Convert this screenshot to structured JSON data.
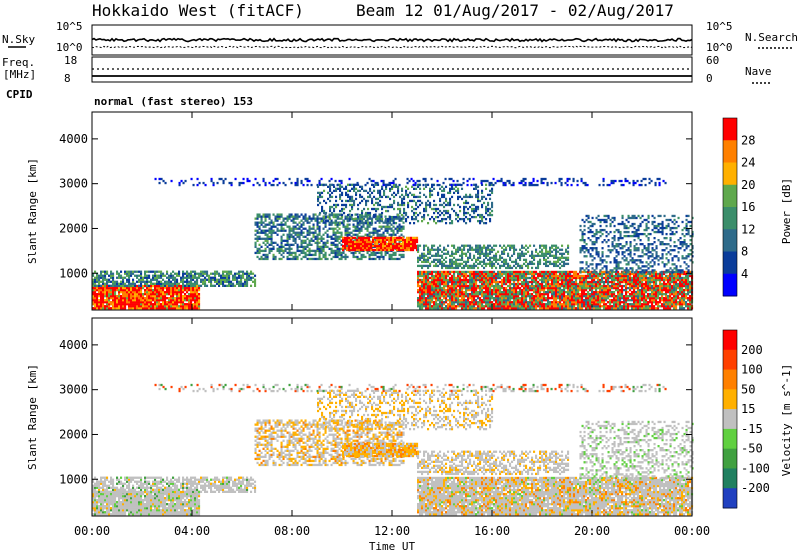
{
  "header": {
    "title": "Hokkaido West (fitACF)",
    "beam_info": "Beam 12 01/Aug/2017 - 02/Aug/2017"
  },
  "strip": {
    "nsky_label": "N.Sky",
    "nsky_top": "10^5",
    "nsky_bottom": "10^0",
    "nsearch_label": "N.Search",
    "freq_label": "Freq.",
    "freq_unit": "[MHz]",
    "freq_top": "18",
    "freq_bottom": "8",
    "nave_label": "Nave",
    "nave_top": "60",
    "nave_bottom": "0",
    "cpid_label": "CPID",
    "cpid_value": "normal (fast stereo) 153"
  },
  "chart_data": [
    {
      "type": "heatmap",
      "name": "Power",
      "ylabel": "Slant Range [km]",
      "xlabel": "",
      "ylim": [
        180,
        4600
      ],
      "xlim_hours": [
        0,
        24
      ],
      "y_ticks": [
        "1000",
        "2000",
        "3000",
        "4000"
      ],
      "colorbar": {
        "label": "Power [dB]",
        "ticks": [
          "4",
          "8",
          "12",
          "16",
          "20",
          "24",
          "28"
        ],
        "colors": [
          "#0000ff",
          "#0a3c9a",
          "#2e6b8a",
          "#3b8e6b",
          "#5fa84d",
          "#ffb000",
          "#ff8000",
          "#ff0000"
        ]
      }
    },
    {
      "type": "heatmap",
      "name": "Velocity",
      "ylabel": "Slant Range [km]",
      "xlabel": "Time UT",
      "ylim": [
        180,
        4600
      ],
      "xlim_hours": [
        0,
        24
      ],
      "y_ticks": [
        "1000",
        "2000",
        "3000",
        "4000"
      ],
      "x_ticks": [
        "00:00",
        "04:00",
        "08:00",
        "12:00",
        "16:00",
        "20:00",
        "00:00"
      ],
      "colorbar": {
        "label": "Velocity [m s^-1]",
        "ticks": [
          "200",
          "100",
          "50",
          "15",
          "-15",
          "-50",
          "-100",
          "-200"
        ],
        "colors": [
          "#2040c0",
          "#208060",
          "#40a040",
          "#60d040",
          "#c0c0c0",
          "#ffb000",
          "#ff8000",
          "#ff4000",
          "#ff0000"
        ]
      }
    }
  ]
}
